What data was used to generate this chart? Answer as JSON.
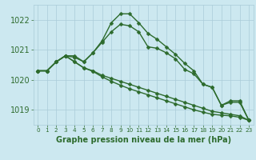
{
  "title": "Graphe pression niveau de la mer (hPa)",
  "background_color": "#cce8f0",
  "grid_color": "#aaccd8",
  "line_color": "#2d6b2d",
  "ylim": [
    1018.5,
    1022.5
  ],
  "xlim": [
    -0.5,
    23.5
  ],
  "yticks": [
    1019,
    1020,
    1021,
    1022
  ],
  "xticks": [
    0,
    1,
    2,
    3,
    4,
    5,
    6,
    7,
    8,
    9,
    10,
    11,
    12,
    13,
    14,
    15,
    16,
    17,
    18,
    19,
    20,
    21,
    22,
    23
  ],
  "series": [
    [
      1020.3,
      1020.3,
      1020.6,
      1020.8,
      1020.8,
      1020.6,
      1020.9,
      1021.25,
      1021.6,
      1021.85,
      1021.8,
      1021.6,
      1021.1,
      1021.05,
      1020.9,
      1020.7,
      1020.35,
      1020.2,
      1019.85,
      1019.75,
      1019.15,
      1019.25,
      1019.25,
      1018.65
    ],
    [
      1020.3,
      1020.3,
      1020.6,
      1020.8,
      1020.75,
      1020.6,
      1020.9,
      1021.3,
      1021.9,
      1022.2,
      1022.2,
      1021.9,
      1021.55,
      1021.35,
      1021.1,
      1020.85,
      1020.55,
      1020.3,
      1019.85,
      1019.75,
      1019.15,
      1019.3,
      1019.3,
      1018.65
    ],
    [
      1020.3,
      1020.3,
      1020.6,
      1020.8,
      1020.6,
      1020.4,
      1020.3,
      1020.15,
      1020.05,
      1019.95,
      1019.85,
      1019.75,
      1019.65,
      1019.55,
      1019.45,
      1019.35,
      1019.25,
      1019.15,
      1019.05,
      1018.95,
      1018.9,
      1018.85,
      1018.8,
      1018.65
    ],
    [
      1020.3,
      1020.3,
      1020.6,
      1020.8,
      1020.6,
      1020.4,
      1020.28,
      1020.1,
      1019.95,
      1019.82,
      1019.7,
      1019.6,
      1019.5,
      1019.4,
      1019.3,
      1019.2,
      1019.1,
      1019.0,
      1018.92,
      1018.85,
      1018.82,
      1018.8,
      1018.75,
      1018.65
    ]
  ],
  "markersize": 2.5,
  "linewidth": 1.0,
  "fontsize_label": 7,
  "fontsize_ytick": 7,
  "fontsize_xtick": 5.2
}
